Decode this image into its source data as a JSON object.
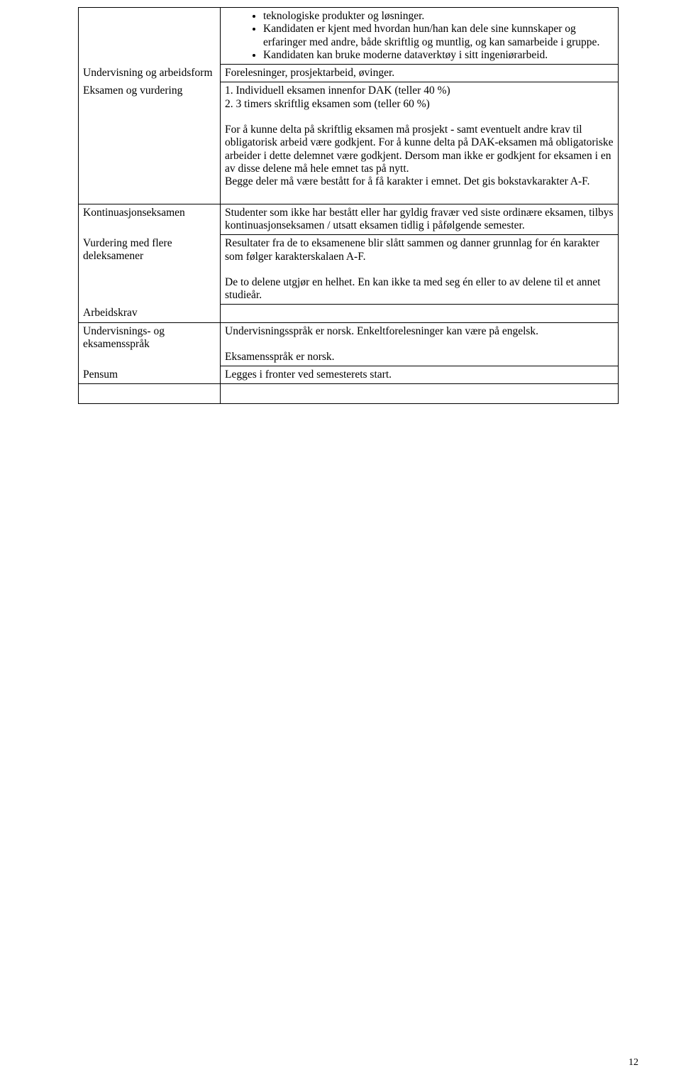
{
  "rows": {
    "r1": {
      "left": "",
      "bullets": [
        "teknologiske produkter og løsninger.",
        "Kandidaten er kjent med hvordan hun/han kan dele sine kunnskaper og erfaringer med andre, både skriftlig og muntlig, og kan samarbeide i gruppe.",
        "Kandidaten kan bruke moderne dataverktøy i sitt ingeniørarbeid."
      ]
    },
    "r2": {
      "left": "Undervisning og arbeidsform",
      "right": "Forelesninger, prosjektarbeid, øvinger."
    },
    "r3": {
      "left": "Eksamen og vurdering",
      "line1": "1. Individuell eksamen innenfor DAK (teller 40 %)",
      "line2": "2. 3 timers skriftlig eksamen som (teller 60 %)",
      "para1": "For å kunne delta på skriftlig eksamen må prosjekt - samt eventuelt andre krav til obligatorisk arbeid være godkjent. For å kunne delta på DAK-eksamen må obligatoriske arbeider i dette delemnet være godkjent. Dersom man ikke er godkjent for eksamen i en av disse delene må hele emnet tas på nytt.",
      "para2": "Begge deler må være bestått for å få karakter i emnet. Det gis bokstavkarakter A-F."
    },
    "r4": {
      "left": "Kontinuasjonseksamen",
      "right": "Studenter som ikke har bestått eller har gyldig fravær ved siste ordinære eksamen, tilbys kontinuasjonseksamen / utsatt eksamen tidlig i påfølgende semester."
    },
    "r5": {
      "left": "Vurdering med flere deleksamener",
      "para1": "Resultater fra de to eksamenene blir slått sammen og danner grunnlag for én karakter som følger karakterskalaen A-F.",
      "para2": "De to delene utgjør en helhet. En kan ikke ta med seg én eller to av delene til et annet studieår."
    },
    "r6": {
      "left": "Arbeidskrav",
      "right": ""
    },
    "r7": {
      "left": "Undervisnings- og eksamensspråk",
      "para1": "Undervisningsspråk er norsk. Enkeltforelesninger kan være på engelsk.",
      "para2": "Eksamensspråk er norsk."
    },
    "r8": {
      "left": "Pensum",
      "right": "Legges i fronter ved semesterets start."
    }
  },
  "pageNumber": "12"
}
